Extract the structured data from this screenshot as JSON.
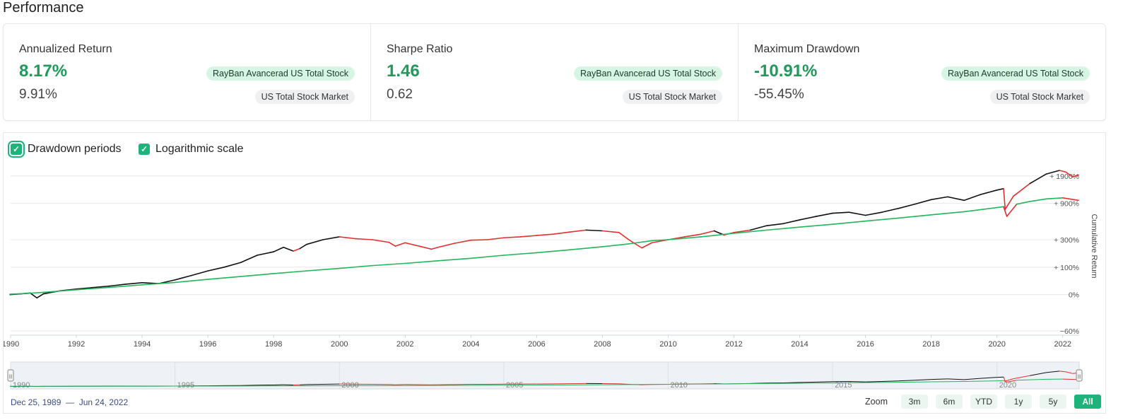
{
  "page": {
    "title": "Performance"
  },
  "metrics": [
    {
      "label": "Annualized Return",
      "primary_value": "8.17%",
      "secondary_value": "9.91%",
      "primary_badge": "RayBan Avancerad US Total Stock",
      "secondary_badge": "US Total Stock Market"
    },
    {
      "label": "Sharpe Ratio",
      "primary_value": "1.46",
      "secondary_value": "0.62",
      "primary_badge": "RayBan Avancerad US Total Stock",
      "secondary_badge": "US Total Stock Market"
    },
    {
      "label": "Maximum Drawdown",
      "primary_value": "-10.91%",
      "secondary_value": "-55.45%",
      "primary_badge": "RayBan Avancerad US Total Stock",
      "secondary_badge": "US Total Stock Market"
    }
  ],
  "controls": {
    "drawdown_label": "Drawdown periods",
    "drawdown_checked": true,
    "log_label": "Logarithmic scale",
    "log_checked": true,
    "check_glyph": "✓"
  },
  "chart_data": {
    "type": "line",
    "ylabel": "Cumulative Return",
    "log_scale": true,
    "grid": true,
    "x_range": [
      1990,
      2022.5
    ],
    "y_range": [
      -60,
      2800
    ],
    "x_ticks": [
      "1990",
      "1992",
      "1994",
      "1996",
      "1998",
      "2000",
      "2002",
      "2004",
      "2006",
      "2008",
      "2010",
      "2012",
      "2014",
      "2016",
      "2018",
      "2020",
      "2022"
    ],
    "y_ticks": [
      {
        "value": 1900,
        "label": "+ 1900%"
      },
      {
        "value": 900,
        "label": "+ 900%"
      },
      {
        "value": 300,
        "label": "+ 300%"
      },
      {
        "value": 100,
        "label": "+ 100%"
      },
      {
        "value": 0,
        "label": "0%"
      },
      {
        "value": -60,
        "label": "−60%"
      }
    ],
    "series": [
      {
        "colors": {
          "normal": "#111111",
          "drawdown": "#e03030"
        },
        "points": [
          [
            1989.98,
            0
          ],
          [
            1990.3,
            2
          ],
          [
            1990.6,
            4
          ],
          [
            1990.8,
            -8
          ],
          [
            1991.0,
            2
          ],
          [
            1991.5,
            10
          ],
          [
            1992.0,
            15
          ],
          [
            1993.0,
            24
          ],
          [
            1993.5,
            30
          ],
          [
            1994.0,
            35
          ],
          [
            1994.5,
            32
          ],
          [
            1995.0,
            45
          ],
          [
            1995.5,
            62
          ],
          [
            1996.0,
            82
          ],
          [
            1996.5,
            100
          ],
          [
            1997.0,
            125
          ],
          [
            1997.5,
            170
          ],
          [
            1998.0,
            195
          ],
          [
            1998.3,
            230
          ],
          [
            1998.6,
            200
          ],
          [
            1998.8,
            220
          ],
          [
            1999.0,
            255
          ],
          [
            1999.5,
            300
          ],
          [
            2000.0,
            330
          ],
          [
            2000.5,
            310
          ],
          [
            2001.0,
            300
          ],
          [
            2001.5,
            275
          ],
          [
            2001.7,
            240
          ],
          [
            2002.0,
            270
          ],
          [
            2002.5,
            235
          ],
          [
            2002.8,
            215
          ],
          [
            2003.0,
            230
          ],
          [
            2003.5,
            265
          ],
          [
            2004.0,
            295
          ],
          [
            2004.5,
            300
          ],
          [
            2005.0,
            320
          ],
          [
            2005.5,
            330
          ],
          [
            2006.0,
            345
          ],
          [
            2006.5,
            360
          ],
          [
            2007.0,
            385
          ],
          [
            2007.5,
            410
          ],
          [
            2008.0,
            400
          ],
          [
            2008.5,
            380
          ],
          [
            2008.8,
            300
          ],
          [
            2009.0,
            260
          ],
          [
            2009.2,
            225
          ],
          [
            2009.5,
            270
          ],
          [
            2010.0,
            300
          ],
          [
            2010.5,
            330
          ],
          [
            2011.0,
            360
          ],
          [
            2011.4,
            400
          ],
          [
            2011.7,
            350
          ],
          [
            2012.0,
            380
          ],
          [
            2012.5,
            410
          ],
          [
            2013.0,
            470
          ],
          [
            2013.5,
            500
          ],
          [
            2014.0,
            560
          ],
          [
            2014.5,
            620
          ],
          [
            2015.0,
            680
          ],
          [
            2015.5,
            700
          ],
          [
            2016.0,
            640
          ],
          [
            2016.5,
            700
          ],
          [
            2017.0,
            780
          ],
          [
            2017.5,
            880
          ],
          [
            2018.0,
            1000
          ],
          [
            2018.5,
            1080
          ],
          [
            2019.0,
            980
          ],
          [
            2019.5,
            1150
          ],
          [
            2020.0,
            1300
          ],
          [
            2020.2,
            1350
          ],
          [
            2020.25,
            760
          ],
          [
            2020.5,
            1100
          ],
          [
            2021.0,
            1550
          ],
          [
            2021.5,
            2000
          ],
          [
            2021.9,
            2200
          ],
          [
            2022.1,
            2100
          ],
          [
            2022.3,
            1850
          ],
          [
            2022.48,
            1950
          ]
        ],
        "drawdown_ranges": [
          [
            1998.5,
            1998.8
          ],
          [
            2000.2,
            2007.3
          ],
          [
            2007.8,
            2011.5
          ],
          [
            2011.6,
            2012.3
          ],
          [
            2020.15,
            2020.8
          ],
          [
            2022.0,
            2022.5
          ]
        ]
      },
      {
        "colors": {
          "normal": "#22b55a",
          "drawdown": "#e03030"
        },
        "points": [
          [
            1989.98,
            1
          ],
          [
            1990.5,
            3
          ],
          [
            1991.0,
            6
          ],
          [
            1992.0,
            13
          ],
          [
            1993.0,
            20
          ],
          [
            1994.0,
            28
          ],
          [
            1995.0,
            36
          ],
          [
            1996.0,
            47
          ],
          [
            1997.0,
            58
          ],
          [
            1998.0,
            70
          ],
          [
            1999.0,
            82
          ],
          [
            2000.0,
            94
          ],
          [
            2001.0,
            108
          ],
          [
            2002.0,
            120
          ],
          [
            2003.0,
            135
          ],
          [
            2004.0,
            150
          ],
          [
            2005.0,
            170
          ],
          [
            2006.0,
            188
          ],
          [
            2007.0,
            210
          ],
          [
            2008.0,
            235
          ],
          [
            2008.8,
            260
          ],
          [
            2009.5,
            290
          ],
          [
            2010.0,
            300
          ],
          [
            2011.0,
            330
          ],
          [
            2012.0,
            370
          ],
          [
            2013.0,
            410
          ],
          [
            2014.0,
            450
          ],
          [
            2015.0,
            490
          ],
          [
            2016.0,
            540
          ],
          [
            2017.0,
            590
          ],
          [
            2018.0,
            650
          ],
          [
            2019.0,
            710
          ],
          [
            2020.0,
            800
          ],
          [
            2020.2,
            820
          ],
          [
            2020.3,
            620
          ],
          [
            2020.6,
            880
          ],
          [
            2021.0,
            950
          ],
          [
            2021.5,
            1020
          ],
          [
            2022.0,
            1050
          ],
          [
            2022.48,
            980
          ]
        ],
        "drawdown_ranges": [
          [
            2020.2,
            2020.6
          ],
          [
            2022.1,
            2022.5
          ]
        ]
      }
    ]
  },
  "navigator": {
    "x_ticks": [
      "1990",
      "1995",
      "2000",
      "2005",
      "2010",
      "2015",
      "2020"
    ],
    "handle_glyph": "|||"
  },
  "range": {
    "start": "Dec 25, 1989",
    "separator": "—",
    "end": "Jun 24, 2022"
  },
  "zoom": {
    "label": "Zoom",
    "buttons": [
      {
        "label": "3m",
        "active": false
      },
      {
        "label": "6m",
        "active": false
      },
      {
        "label": "YTD",
        "active": false
      },
      {
        "label": "1y",
        "active": false
      },
      {
        "label": "5y",
        "active": false
      },
      {
        "label": "All",
        "active": true
      }
    ]
  }
}
